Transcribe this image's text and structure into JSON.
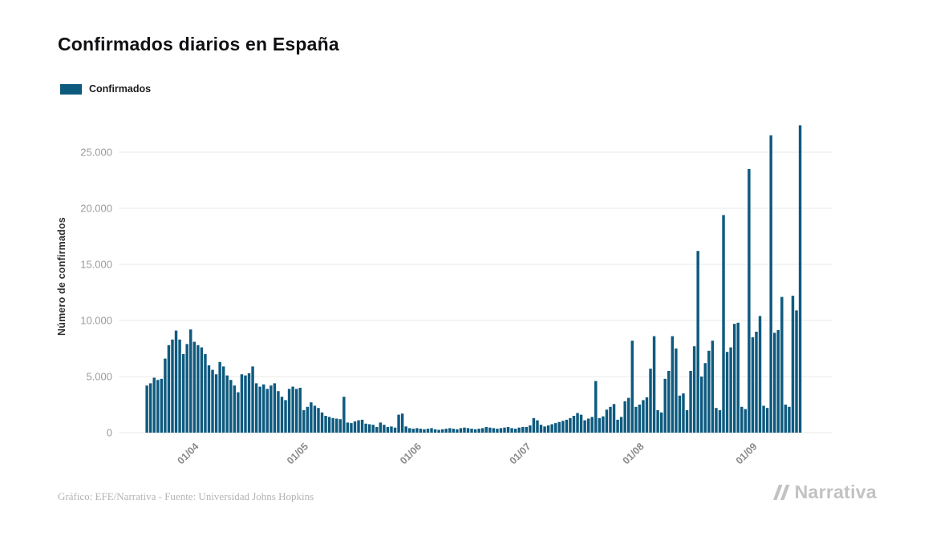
{
  "title": "Confirmados diarios en España",
  "legend": {
    "label": "Confirmados",
    "color": "#0e5a7f"
  },
  "y_axis": {
    "label": "Número de confirmados"
  },
  "footer": {
    "credit": "Gráfico: EFE/Narrativa - Fuente: Universidad Johns Hopkins",
    "brand": "Narrativa"
  },
  "chart_data": {
    "type": "bar",
    "title": "Confirmados diarios en España",
    "ylabel": "Número de confirmados",
    "ylim": [
      0,
      28000
    ],
    "grid": "horizontal",
    "legend_position": "top-left",
    "series": [
      {
        "name": "Confirmados",
        "color": "#0e5a7f"
      }
    ],
    "y_ticks": [
      {
        "value": 0,
        "label": "0"
      },
      {
        "value": 5000,
        "label": "5.000"
      },
      {
        "value": 10000,
        "label": "10.000"
      },
      {
        "value": 15000,
        "label": "15.000"
      },
      {
        "value": 20000,
        "label": "20.000"
      },
      {
        "value": 25000,
        "label": "25.000"
      }
    ],
    "x_ticks": [
      {
        "index": 13,
        "label": "01/04"
      },
      {
        "index": 43,
        "label": "01/05"
      },
      {
        "index": 74,
        "label": "01/06"
      },
      {
        "index": 104,
        "label": "01/07"
      },
      {
        "index": 135,
        "label": "01/08"
      },
      {
        "index": 166,
        "label": "01/09"
      }
    ],
    "values": [
      4200,
      4400,
      4900,
      4700,
      4800,
      6600,
      7800,
      8300,
      9100,
      8300,
      7000,
      7900,
      9200,
      8100,
      7800,
      7600,
      7000,
      6000,
      5600,
      5200,
      6300,
      5900,
      5100,
      4700,
      4200,
      3600,
      5200,
      5100,
      5300,
      5900,
      4400,
      4100,
      4300,
      3900,
      4200,
      4400,
      3700,
      3200,
      2900,
      3900,
      4100,
      3900,
      4000,
      2000,
      2300,
      2700,
      2400,
      2200,
      1800,
      1500,
      1400,
      1300,
      1250,
      1200,
      3200,
      900,
      850,
      1000,
      1100,
      1150,
      800,
      750,
      700,
      500,
      900,
      700,
      500,
      550,
      450,
      1600,
      1700,
      550,
      400,
      350,
      400,
      350,
      300,
      350,
      400,
      300,
      250,
      300,
      350,
      400,
      350,
      300,
      400,
      450,
      400,
      350,
      300,
      350,
      400,
      500,
      450,
      400,
      350,
      400,
      450,
      500,
      400,
      350,
      450,
      500,
      500,
      650,
      1300,
      1100,
      700,
      550,
      650,
      750,
      850,
      950,
      1050,
      1150,
      1300,
      1500,
      1750,
      1600,
      1100,
      1250,
      1400,
      4600,
      1300,
      1450,
      2050,
      2300,
      2550,
      1150,
      1400,
      2800,
      3100,
      8200,
      2300,
      2500,
      2900,
      3150,
      5700,
      8600,
      2000,
      1800,
      4800,
      5500,
      8600,
      7500,
      3300,
      3500,
      2000,
      5500,
      7700,
      16200,
      5000,
      6200,
      7300,
      8200,
      2200,
      2000,
      19400,
      7200,
      7600,
      9700,
      9800,
      2300,
      2100,
      23500,
      8500,
      9000,
      10400,
      2400,
      2200,
      26500,
      8900,
      9150,
      12100,
      2500,
      2300,
      12200,
      10900,
      27400
    ]
  }
}
